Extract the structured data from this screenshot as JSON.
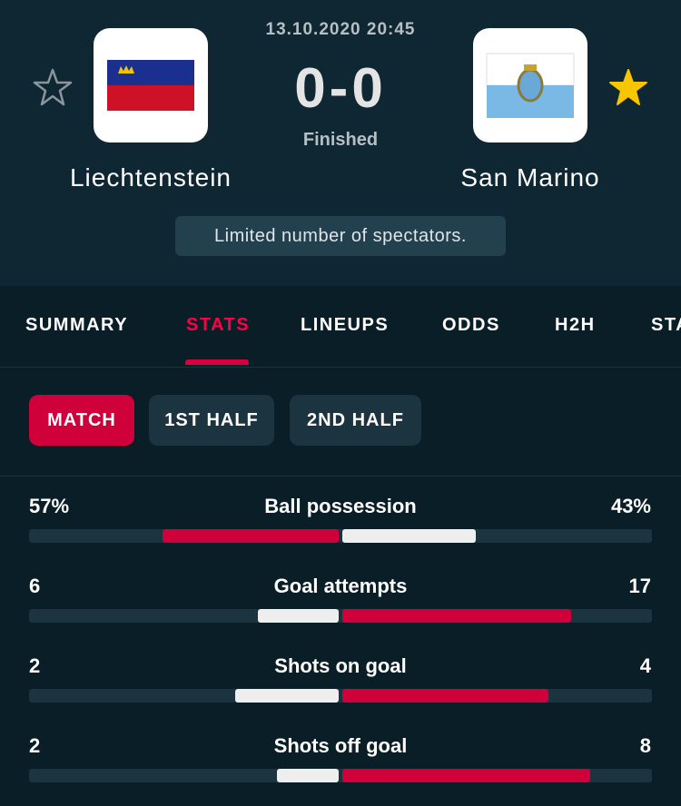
{
  "match": {
    "date": "13.10.2020 20:45",
    "score": "0-0",
    "status": "Finished",
    "home": "Liechtenstein",
    "away": "San Marino",
    "note": "Limited number of spectators."
  },
  "tabs": [
    "SUMMARY",
    "STATS",
    "LINEUPS",
    "ODDS",
    "H2H",
    "STA"
  ],
  "periods": [
    "MATCH",
    "1ST HALF",
    "2ND HALF"
  ],
  "stats": [
    {
      "label": "Ball possession",
      "home": {
        "value": 57,
        "label": "57%"
      },
      "away": {
        "value": 43,
        "label": "43%"
      }
    },
    {
      "label": "Goal attempts",
      "home": 6,
      "away": 17
    },
    {
      "label": "Shots on goal",
      "home": 2,
      "away": 4
    },
    {
      "label": "Shots off goal",
      "home": 2,
      "away": 8
    }
  ]
}
